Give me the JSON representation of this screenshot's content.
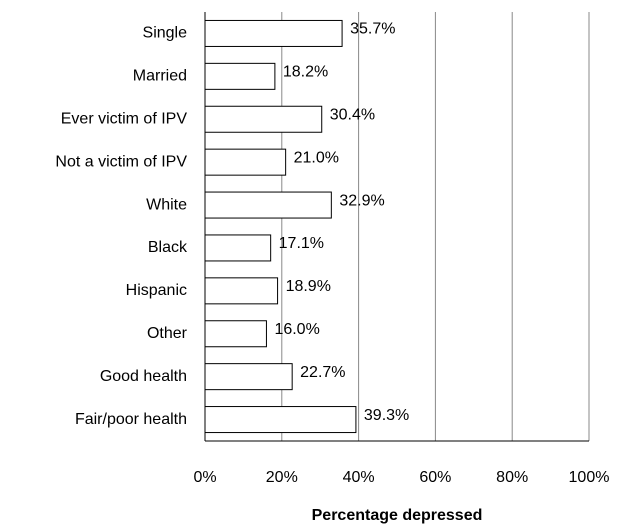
{
  "chart_data": {
    "type": "bar",
    "orientation": "horizontal",
    "xlabel": "Percentage depressed",
    "categories": [
      "Single",
      "Married",
      "Ever victim of IPV",
      "Not a victim of IPV",
      "White",
      "Black",
      "Hispanic",
      "Other",
      "Good health",
      "Fair/poor health"
    ],
    "values": [
      35.7,
      18.2,
      30.4,
      21.0,
      32.9,
      17.1,
      18.9,
      16.0,
      22.7,
      39.3
    ],
    "value_labels": [
      "35.7%",
      "18.2%",
      "30.4%",
      "21.0%",
      "32.9%",
      "17.1%",
      "18.9%",
      "16.0%",
      "22.7%",
      "39.3%"
    ],
    "color": "#ffffff",
    "xlim": [
      0,
      100
    ],
    "xticks": [
      {
        "value": 0,
        "label": "0%"
      },
      {
        "value": 20,
        "label": "20%"
      },
      {
        "value": 40,
        "label": "40%"
      },
      {
        "value": 60,
        "label": "60%"
      },
      {
        "value": 80,
        "label": "80%"
      },
      {
        "value": 100,
        "label": "100%"
      }
    ],
    "grid": true
  }
}
